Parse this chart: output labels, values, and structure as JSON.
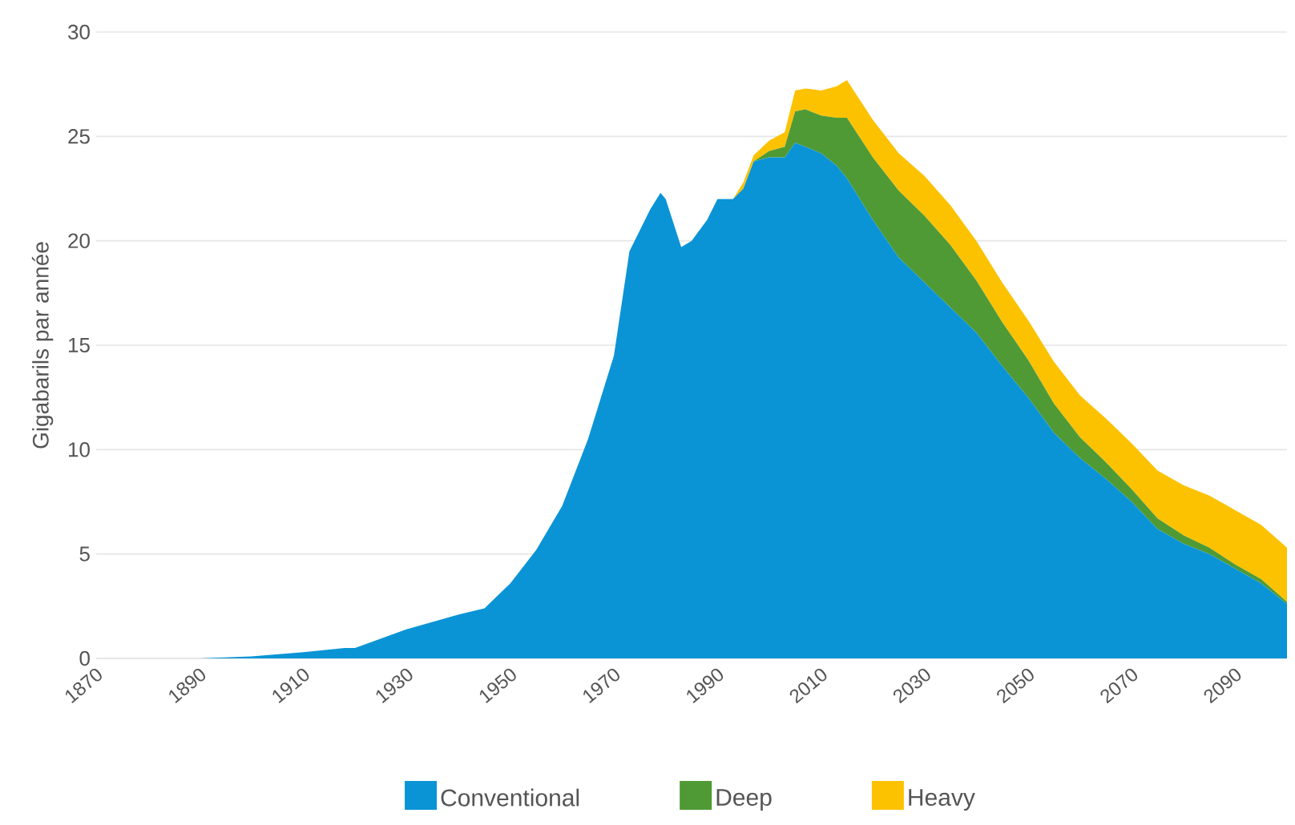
{
  "chart_data": {
    "type": "area",
    "stacked": true,
    "ylabel": "Gigabarils par année",
    "x": [
      1870,
      1890,
      1900,
      1910,
      1918,
      1920,
      1930,
      1940,
      1945,
      1950,
      1955,
      1960,
      1965,
      1970,
      1973,
      1975,
      1977,
      1979,
      1980,
      1983,
      1985,
      1988,
      1990,
      1993,
      1995,
      1997,
      2000,
      2003,
      2005,
      2007,
      2010,
      2013,
      2015,
      2020,
      2025,
      2030,
      2035,
      2040,
      2045,
      2050,
      2055,
      2060,
      2065,
      2070,
      2075,
      2080,
      2085,
      2090,
      2095,
      2100
    ],
    "series": [
      {
        "name": "Conventional",
        "color": "#0a94d6",
        "values": [
          0,
          0,
          0.1,
          0.3,
          0.5,
          0.5,
          1.4,
          2.1,
          2.4,
          3.6,
          5.2,
          7.3,
          10.5,
          14.5,
          19.5,
          20.5,
          21.5,
          22.3,
          22.0,
          19.7,
          20.0,
          21.0,
          22.0,
          22.0,
          22.5,
          23.8,
          24.0,
          24.0,
          24.7,
          24.5,
          24.2,
          23.6,
          23.0,
          21.0,
          19.2,
          18.0,
          16.8,
          15.6,
          14.0,
          12.5,
          10.8,
          9.6,
          8.6,
          7.5,
          6.2,
          5.5,
          5.0,
          4.3,
          3.6,
          2.6
        ]
      },
      {
        "name": "Deep",
        "color": "#4f9a35",
        "values": [
          0,
          0,
          0,
          0,
          0,
          0,
          0,
          0,
          0,
          0,
          0,
          0,
          0,
          0,
          0,
          0,
          0,
          0,
          0,
          0,
          0,
          0,
          0,
          0,
          0,
          0,
          0.3,
          0.5,
          1.5,
          1.8,
          1.8,
          2.3,
          2.9,
          3.0,
          3.2,
          3.2,
          3.0,
          2.5,
          2.1,
          1.8,
          1.4,
          1.0,
          0.8,
          0.6,
          0.5,
          0.4,
          0.3,
          0.2,
          0.2,
          0.1
        ]
      },
      {
        "name": "Heavy",
        "color": "#fcc200",
        "values": [
          0,
          0,
          0,
          0,
          0,
          0,
          0,
          0,
          0,
          0,
          0,
          0,
          0,
          0,
          0,
          0,
          0,
          0,
          0,
          0,
          0,
          0,
          0,
          0,
          0.3,
          0.3,
          0.5,
          0.7,
          1.0,
          1.0,
          1.2,
          1.5,
          1.8,
          1.8,
          1.8,
          1.9,
          1.9,
          1.9,
          1.9,
          1.9,
          2.0,
          2.0,
          2.1,
          2.2,
          2.3,
          2.4,
          2.5,
          2.6,
          2.6,
          2.6
        ]
      }
    ],
    "xlim": [
      1870,
      2100
    ],
    "xticks": [
      1870,
      1890,
      1910,
      1930,
      1950,
      1970,
      1990,
      2010,
      2030,
      2050,
      2070,
      2090
    ],
    "ylim": [
      0,
      30
    ],
    "yticks": [
      0,
      5,
      10,
      15,
      20,
      25,
      30
    ],
    "grid": "y",
    "legend": "bottom"
  }
}
